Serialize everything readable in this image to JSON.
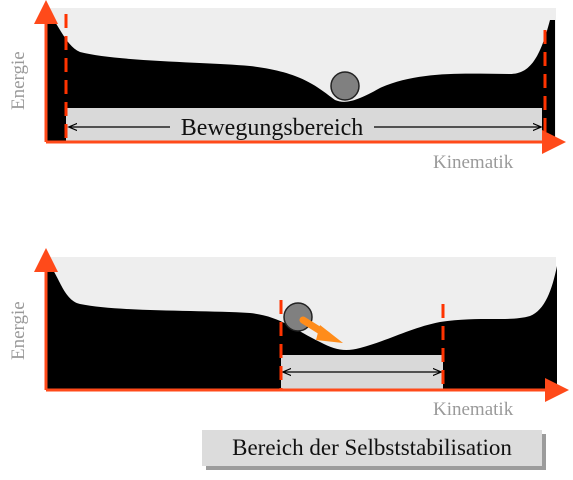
{
  "top_panel": {
    "y_axis_label": "Energie",
    "x_axis_label": "Kinematik",
    "range_label": "Bewegungsbereich"
  },
  "bottom_panel": {
    "y_axis_label": "Energie",
    "x_axis_label": "Kinematik"
  },
  "caption": "Bereich der Selbststabilisation",
  "colors": {
    "axis": "#ff4a1a",
    "marker": "#ff3300",
    "landscape": "#000000",
    "background": "#eeeeee",
    "ball": "#808080",
    "arrow": "#ff8c1a",
    "range_bar": "#d9d9d9"
  }
}
